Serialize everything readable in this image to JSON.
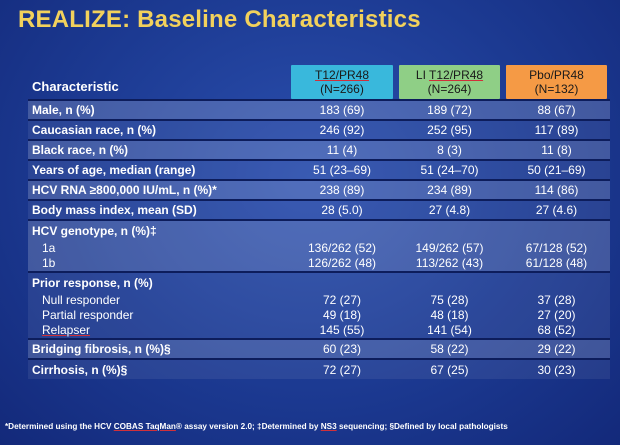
{
  "title": "REALIZE: Baseline Characteristics",
  "header": {
    "characteristic": "Characteristic",
    "col1": {
      "pre": "",
      "name": "T12/PR48",
      "n": "(N=266)"
    },
    "col2": {
      "pre": "LI ",
      "name": "T12/PR48",
      "n": "(N=264)"
    },
    "col3": {
      "pre": "",
      "name": "Pbo/PR48",
      "n": "(N=132)"
    }
  },
  "rows": [
    {
      "label": "Male, n (%)",
      "v1": "183 (69)",
      "v2": "189 (72)",
      "v3": "88 (67)"
    },
    {
      "label": "Caucasian race, n (%)",
      "v1": "246 (92)",
      "v2": "252 (95)",
      "v3": "117 (89)"
    },
    {
      "label": "Black race, n (%)",
      "v1": "11 (4)",
      "v2": "8 (3)",
      "v3": "11 (8)"
    },
    {
      "label": "Years of age, median (range)",
      "v1": "51 (23–69)",
      "v2": "51 (24–70)",
      "v3": "50 (21–69)"
    },
    {
      "label": "HCV RNA ≥800,000 IU/mL, n (%)*",
      "v1": "238 (89)",
      "v2": "234 (89)",
      "v3": "114 (86)"
    },
    {
      "label": "Body mass index, mean (SD)",
      "v1": "28 (5.0)",
      "v2": "27 (4.8)",
      "v3": "27 (4.6)"
    }
  ],
  "genotype": {
    "label": "HCV genotype, n (%)‡",
    "sub": [
      {
        "label": "1a",
        "v1": "136/262 (52)",
        "v2": "149/262 (57)",
        "v3": "67/128 (52)"
      },
      {
        "label": "1b",
        "v1": "126/262 (48)",
        "v2": "113/262 (43)",
        "v3": "61/128 (48)"
      }
    ]
  },
  "prior": {
    "label": "Prior response, n (%)",
    "sub": [
      {
        "label": "Null responder",
        "v1": "72 (27)",
        "v2": "75 (28)",
        "v3": "37 (28)"
      },
      {
        "label": "Partial responder",
        "v1": "49 (18)",
        "v2": "48 (18)",
        "v3": "27 (20)"
      },
      {
        "label": "Relapser",
        "v1": "145 (55)",
        "v2": "141 (54)",
        "v3": "68 (52)"
      }
    ]
  },
  "tail_rows": [
    {
      "label": "Bridging fibrosis, n (%)§",
      "v1": "60 (23)",
      "v2": "58 (22)",
      "v3": "29 (22)"
    },
    {
      "label": "Cirrhosis, n (%)§",
      "v1": "72 (27)",
      "v2": "67 (25)",
      "v3": "30 (23)"
    }
  ],
  "footnote": {
    "a": "*Determined using the HCV ",
    "b": "COBAS TaqMan",
    "c": "® assay version 2.0; ‡Determined by ",
    "d": "NS3",
    "e": " sequencing; §Defined by local pathologists"
  }
}
